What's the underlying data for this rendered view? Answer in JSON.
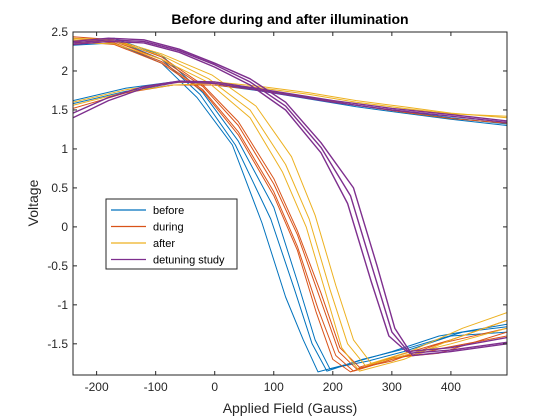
{
  "chart_data": {
    "type": "line",
    "title": "Before during and after illumination",
    "xlabel": "Applied Field (Gauss)",
    "ylabel": "Voltage",
    "xlim": [
      -240,
      495
    ],
    "ylim": [
      -1.9,
      2.5
    ],
    "xticks": [
      -200,
      -100,
      0,
      100,
      200,
      300,
      400
    ],
    "yticks": [
      2.5,
      2,
      1.5,
      1,
      0.5,
      0,
      -0.5,
      -1,
      -1.5
    ],
    "legend_position": "lower-left",
    "series": [
      {
        "name": "before",
        "color": "#0072BD",
        "lines": [
          [
            [
              -240,
              1.62
            ],
            [
              -150,
              1.78
            ],
            [
              -70,
              1.86
            ],
            [
              0,
              1.84
            ],
            [
              80,
              1.76
            ],
            [
              160,
              1.66
            ],
            [
              240,
              1.56
            ],
            [
              320,
              1.48
            ],
            [
              400,
              1.4
            ],
            [
              495,
              1.32
            ]
          ],
          [
            [
              -240,
              1.58
            ],
            [
              -150,
              1.74
            ],
            [
              -70,
              1.82
            ],
            [
              0,
              1.82
            ],
            [
              80,
              1.74
            ],
            [
              160,
              1.64
            ],
            [
              240,
              1.54
            ],
            [
              320,
              1.46
            ],
            [
              400,
              1.38
            ],
            [
              495,
              1.3
            ]
          ],
          [
            [
              -240,
              2.33
            ],
            [
              -170,
              2.36
            ],
            [
              -90,
              2.1
            ],
            [
              -30,
              1.66
            ],
            [
              30,
              1.05
            ],
            [
              80,
              0.05
            ],
            [
              120,
              -0.9
            ],
            [
              150,
              -1.45
            ],
            [
              175,
              -1.86
            ],
            [
              230,
              -1.75
            ],
            [
              300,
              -1.6
            ],
            [
              380,
              -1.4
            ],
            [
              495,
              -1.25
            ]
          ],
          [
            [
              -240,
              2.38
            ],
            [
              -170,
              2.42
            ],
            [
              -90,
              2.2
            ],
            [
              -20,
              1.72
            ],
            [
              40,
              1.1
            ],
            [
              100,
              0.25
            ],
            [
              140,
              -0.7
            ],
            [
              170,
              -1.45
            ],
            [
              195,
              -1.82
            ],
            [
              260,
              -1.72
            ],
            [
              320,
              -1.6
            ],
            [
              400,
              -1.4
            ],
            [
              495,
              -1.35
            ]
          ],
          [
            [
              -240,
              2.36
            ],
            [
              -170,
              2.4
            ],
            [
              -90,
              2.15
            ],
            [
              -25,
              1.7
            ],
            [
              35,
              1.05
            ],
            [
              95,
              0.1
            ],
            [
              135,
              -0.8
            ],
            [
              165,
              -1.5
            ],
            [
              190,
              -1.85
            ],
            [
              250,
              -1.7
            ],
            [
              330,
              -1.55
            ],
            [
              420,
              -1.35
            ],
            [
              495,
              -1.28
            ]
          ]
        ]
      },
      {
        "name": "during",
        "color": "#D95319",
        "lines": [
          [
            [
              -240,
              1.52
            ],
            [
              -150,
              1.72
            ],
            [
              -70,
              1.82
            ],
            [
              0,
              1.82
            ],
            [
              80,
              1.75
            ],
            [
              160,
              1.65
            ],
            [
              240,
              1.56
            ],
            [
              320,
              1.47
            ],
            [
              400,
              1.39
            ],
            [
              495,
              1.33
            ]
          ],
          [
            [
              -240,
              2.42
            ],
            [
              -170,
              2.38
            ],
            [
              -90,
              2.15
            ],
            [
              -20,
              1.8
            ],
            [
              40,
              1.3
            ],
            [
              100,
              0.55
            ],
            [
              140,
              -0.1
            ],
            [
              180,
              -0.95
            ],
            [
              210,
              -1.6
            ],
            [
              240,
              -1.82
            ],
            [
              300,
              -1.72
            ],
            [
              380,
              -1.5
            ],
            [
              495,
              -1.3
            ]
          ],
          [
            [
              -240,
              2.4
            ],
            [
              -170,
              2.36
            ],
            [
              -90,
              2.12
            ],
            [
              -20,
              1.76
            ],
            [
              40,
              1.22
            ],
            [
              100,
              0.45
            ],
            [
              140,
              -0.25
            ],
            [
              175,
              -1.05
            ],
            [
              205,
              -1.65
            ],
            [
              235,
              -1.85
            ],
            [
              300,
              -1.7
            ],
            [
              390,
              -1.55
            ],
            [
              495,
              -1.4
            ]
          ],
          [
            [
              -240,
              2.44
            ],
            [
              -170,
              2.4
            ],
            [
              -90,
              2.18
            ],
            [
              -20,
              1.82
            ],
            [
              40,
              1.35
            ],
            [
              100,
              0.62
            ],
            [
              140,
              -0.05
            ],
            [
              180,
              -0.85
            ],
            [
              212,
              -1.55
            ],
            [
              245,
              -1.8
            ],
            [
              310,
              -1.65
            ],
            [
              400,
              -1.45
            ],
            [
              495,
              -1.2
            ]
          ],
          [
            [
              -240,
              2.38
            ],
            [
              -170,
              2.34
            ],
            [
              -90,
              2.1
            ],
            [
              -20,
              1.74
            ],
            [
              40,
              1.18
            ],
            [
              100,
              0.4
            ],
            [
              140,
              -0.3
            ],
            [
              172,
              -1.1
            ],
            [
              200,
              -1.7
            ],
            [
              230,
              -1.86
            ],
            [
              300,
              -1.68
            ],
            [
              380,
              -1.62
            ],
            [
              495,
              -1.35
            ]
          ]
        ]
      },
      {
        "name": "after",
        "color": "#EDB120",
        "lines": [
          [
            [
              -240,
              1.6
            ],
            [
              -150,
              1.76
            ],
            [
              -70,
              1.85
            ],
            [
              0,
              1.86
            ],
            [
              80,
              1.8
            ],
            [
              160,
              1.72
            ],
            [
              240,
              1.62
            ],
            [
              320,
              1.54
            ],
            [
              400,
              1.46
            ],
            [
              495,
              1.4
            ]
          ],
          [
            [
              -240,
              1.56
            ],
            [
              -150,
              1.73
            ],
            [
              -70,
              1.82
            ],
            [
              0,
              1.84
            ],
            [
              80,
              1.78
            ],
            [
              160,
              1.7
            ],
            [
              240,
              1.6
            ],
            [
              320,
              1.52
            ],
            [
              400,
              1.45
            ],
            [
              495,
              1.42
            ]
          ],
          [
            [
              -240,
              2.4
            ],
            [
              -170,
              2.38
            ],
            [
              -90,
              2.2
            ],
            [
              -10,
              1.9
            ],
            [
              60,
              1.5
            ],
            [
              120,
              0.8
            ],
            [
              160,
              0.1
            ],
            [
              195,
              -0.8
            ],
            [
              225,
              -1.5
            ],
            [
              255,
              -1.78
            ],
            [
              320,
              -1.65
            ],
            [
              400,
              -1.5
            ],
            [
              495,
              -1.3
            ]
          ],
          [
            [
              -240,
              2.36
            ],
            [
              -170,
              2.35
            ],
            [
              -90,
              2.15
            ],
            [
              -10,
              1.85
            ],
            [
              60,
              1.4
            ],
            [
              115,
              0.7
            ],
            [
              155,
              0.0
            ],
            [
              190,
              -0.9
            ],
            [
              215,
              -1.55
            ],
            [
              245,
              -1.85
            ],
            [
              320,
              -1.7
            ],
            [
              400,
              -1.45
            ],
            [
              495,
              -1.2
            ]
          ],
          [
            [
              -240,
              2.42
            ],
            [
              -170,
              2.4
            ],
            [
              -90,
              2.22
            ],
            [
              -5,
              1.95
            ],
            [
              70,
              1.55
            ],
            [
              130,
              0.9
            ],
            [
              170,
              0.15
            ],
            [
              205,
              -0.75
            ],
            [
              235,
              -1.45
            ],
            [
              265,
              -1.75
            ],
            [
              330,
              -1.6
            ],
            [
              420,
              -1.3
            ],
            [
              495,
              -1.1
            ]
          ]
        ]
      },
      {
        "name": "detuning study",
        "color": "#7E2F8E",
        "lines": [
          [
            [
              -240,
              1.4
            ],
            [
              -180,
              1.62
            ],
            [
              -120,
              1.78
            ],
            [
              -60,
              1.86
            ],
            [
              0,
              1.84
            ],
            [
              100,
              1.72
            ],
            [
              200,
              1.6
            ],
            [
              300,
              1.5
            ],
            [
              400,
              1.42
            ],
            [
              495,
              1.34
            ]
          ],
          [
            [
              -240,
              1.46
            ],
            [
              -180,
              1.66
            ],
            [
              -120,
              1.8
            ],
            [
              -60,
              1.87
            ],
            [
              0,
              1.86
            ],
            [
              100,
              1.74
            ],
            [
              200,
              1.62
            ],
            [
              300,
              1.52
            ],
            [
              400,
              1.44
            ],
            [
              495,
              1.36
            ]
          ],
          [
            [
              -240,
              2.36
            ],
            [
              -180,
              2.4
            ],
            [
              -120,
              2.38
            ],
            [
              -60,
              2.26
            ],
            [
              0,
              2.08
            ],
            [
              60,
              1.86
            ],
            [
              120,
              1.55
            ],
            [
              180,
              1.02
            ],
            [
              230,
              0.4
            ],
            [
              270,
              -0.6
            ],
            [
              300,
              -1.35
            ],
            [
              330,
              -1.62
            ],
            [
              400,
              -1.58
            ],
            [
              495,
              -1.48
            ]
          ],
          [
            [
              -240,
              2.34
            ],
            [
              -180,
              2.38
            ],
            [
              -120,
              2.36
            ],
            [
              -60,
              2.24
            ],
            [
              0,
              2.05
            ],
            [
              60,
              1.82
            ],
            [
              120,
              1.5
            ],
            [
              180,
              0.95
            ],
            [
              225,
              0.3
            ],
            [
              265,
              -0.7
            ],
            [
              295,
              -1.4
            ],
            [
              325,
              -1.6
            ],
            [
              400,
              -1.55
            ],
            [
              495,
              -1.42
            ]
          ],
          [
            [
              -240,
              2.38
            ],
            [
              -180,
              2.42
            ],
            [
              -120,
              2.4
            ],
            [
              -60,
              2.28
            ],
            [
              0,
              2.1
            ],
            [
              60,
              1.9
            ],
            [
              120,
              1.6
            ],
            [
              180,
              1.08
            ],
            [
              235,
              0.5
            ],
            [
              275,
              -0.5
            ],
            [
              305,
              -1.3
            ],
            [
              335,
              -1.65
            ],
            [
              400,
              -1.6
            ],
            [
              495,
              -1.5
            ]
          ]
        ]
      }
    ]
  }
}
